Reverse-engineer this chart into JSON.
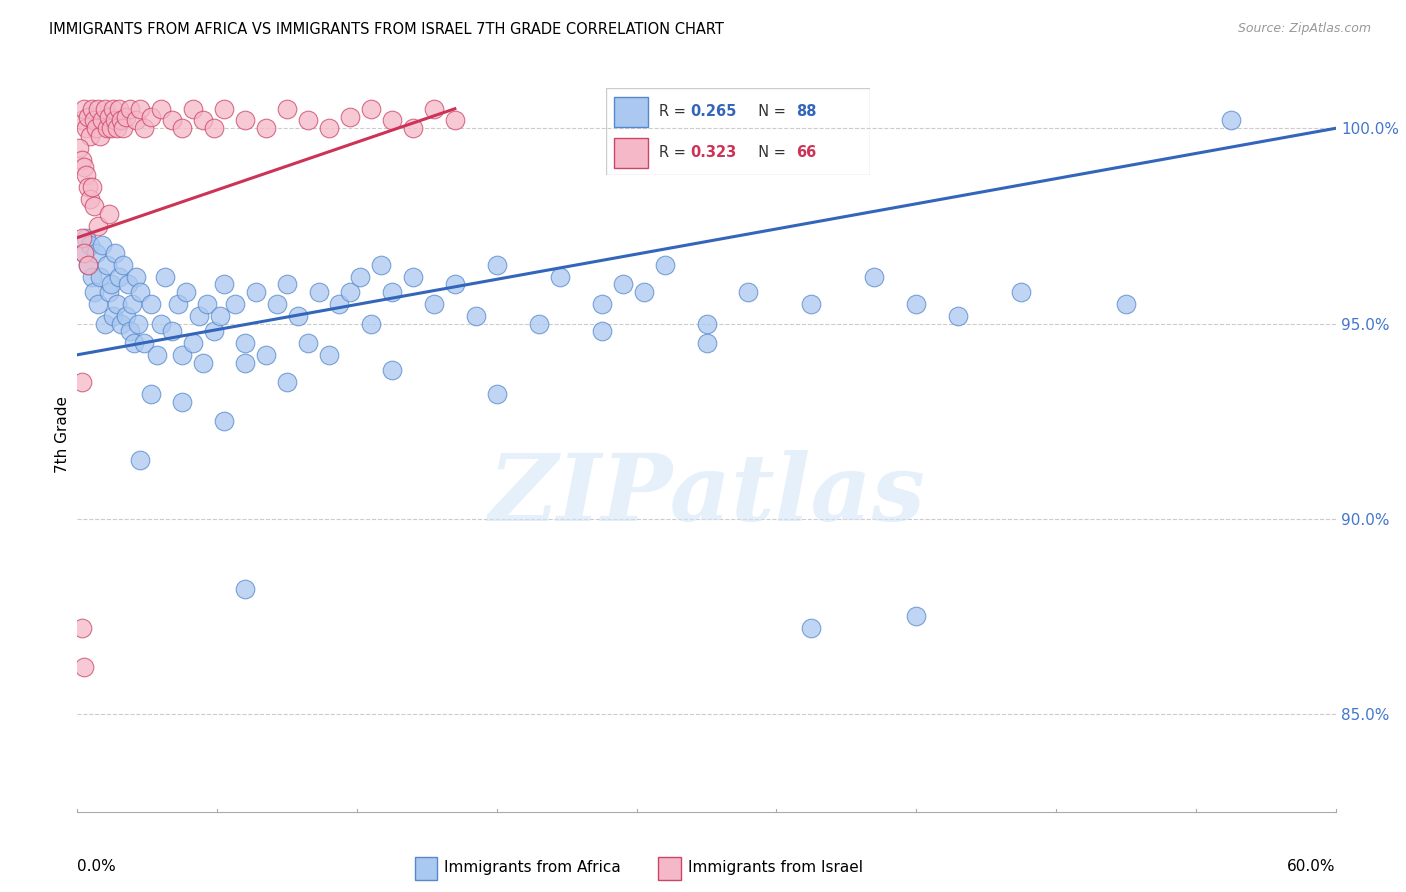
{
  "title": "IMMIGRANTS FROM AFRICA VS IMMIGRANTS FROM ISRAEL 7TH GRADE CORRELATION CHART",
  "source": "Source: ZipAtlas.com",
  "ylabel": "7th Grade",
  "y_ticks": [
    85.0,
    90.0,
    95.0,
    100.0
  ],
  "y_tick_labels": [
    "85.0%",
    "90.0%",
    "95.0%",
    "100.0%"
  ],
  "xlim": [
    0.0,
    60.0
  ],
  "ylim": [
    82.5,
    101.8
  ],
  "legend_blue_R": 0.265,
  "legend_blue_N": 88,
  "legend_pink_R": 0.323,
  "legend_pink_N": 66,
  "blue_color": "#aac8f0",
  "blue_edge": "#5588cc",
  "pink_color": "#f5b8c8",
  "pink_edge": "#cc4466",
  "trend_blue_color": "#3366bb",
  "trend_pink_color": "#cc3355",
  "watermark_text": "ZIPatlas",
  "blue_scatter": [
    [
      0.3,
      96.8
    ],
    [
      0.4,
      97.2
    ],
    [
      0.5,
      96.5
    ],
    [
      0.6,
      97.0
    ],
    [
      0.7,
      96.2
    ],
    [
      0.8,
      95.8
    ],
    [
      0.9,
      96.8
    ],
    [
      1.0,
      95.5
    ],
    [
      1.1,
      96.2
    ],
    [
      1.2,
      97.0
    ],
    [
      1.3,
      95.0
    ],
    [
      1.4,
      96.5
    ],
    [
      1.5,
      95.8
    ],
    [
      1.6,
      96.0
    ],
    [
      1.7,
      95.2
    ],
    [
      1.8,
      96.8
    ],
    [
      1.9,
      95.5
    ],
    [
      2.0,
      96.2
    ],
    [
      2.1,
      95.0
    ],
    [
      2.2,
      96.5
    ],
    [
      2.3,
      95.2
    ],
    [
      2.4,
      96.0
    ],
    [
      2.5,
      94.8
    ],
    [
      2.6,
      95.5
    ],
    [
      2.7,
      94.5
    ],
    [
      2.8,
      96.2
    ],
    [
      2.9,
      95.0
    ],
    [
      3.0,
      95.8
    ],
    [
      3.2,
      94.5
    ],
    [
      3.5,
      95.5
    ],
    [
      3.8,
      94.2
    ],
    [
      4.0,
      95.0
    ],
    [
      4.2,
      96.2
    ],
    [
      4.5,
      94.8
    ],
    [
      4.8,
      95.5
    ],
    [
      5.0,
      94.2
    ],
    [
      5.2,
      95.8
    ],
    [
      5.5,
      94.5
    ],
    [
      5.8,
      95.2
    ],
    [
      6.0,
      94.0
    ],
    [
      6.2,
      95.5
    ],
    [
      6.5,
      94.8
    ],
    [
      6.8,
      95.2
    ],
    [
      7.0,
      96.0
    ],
    [
      7.5,
      95.5
    ],
    [
      8.0,
      94.5
    ],
    [
      8.5,
      95.8
    ],
    [
      9.0,
      94.2
    ],
    [
      9.5,
      95.5
    ],
    [
      10.0,
      96.0
    ],
    [
      10.5,
      95.2
    ],
    [
      11.0,
      94.5
    ],
    [
      11.5,
      95.8
    ],
    [
      12.0,
      94.2
    ],
    [
      12.5,
      95.5
    ],
    [
      13.0,
      95.8
    ],
    [
      13.5,
      96.2
    ],
    [
      14.0,
      95.0
    ],
    [
      14.5,
      96.5
    ],
    [
      15.0,
      95.8
    ],
    [
      16.0,
      96.2
    ],
    [
      17.0,
      95.5
    ],
    [
      18.0,
      96.0
    ],
    [
      19.0,
      95.2
    ],
    [
      20.0,
      96.5
    ],
    [
      22.0,
      95.0
    ],
    [
      23.0,
      96.2
    ],
    [
      25.0,
      95.5
    ],
    [
      26.0,
      96.0
    ],
    [
      27.0,
      95.8
    ],
    [
      28.0,
      96.5
    ],
    [
      30.0,
      95.0
    ],
    [
      32.0,
      95.8
    ],
    [
      35.0,
      95.5
    ],
    [
      38.0,
      96.2
    ],
    [
      40.0,
      95.5
    ],
    [
      42.0,
      95.2
    ],
    [
      45.0,
      95.8
    ],
    [
      50.0,
      95.5
    ],
    [
      55.0,
      100.2
    ],
    [
      3.5,
      93.2
    ],
    [
      5.0,
      93.0
    ],
    [
      7.0,
      92.5
    ],
    [
      8.0,
      94.0
    ],
    [
      10.0,
      93.5
    ],
    [
      15.0,
      93.8
    ],
    [
      20.0,
      93.2
    ],
    [
      25.0,
      94.8
    ],
    [
      30.0,
      94.5
    ],
    [
      3.0,
      91.5
    ],
    [
      8.0,
      88.2
    ],
    [
      35.0,
      87.2
    ],
    [
      40.0,
      87.5
    ]
  ],
  "pink_scatter": [
    [
      0.2,
      100.2
    ],
    [
      0.3,
      100.5
    ],
    [
      0.4,
      100.0
    ],
    [
      0.5,
      100.3
    ],
    [
      0.6,
      99.8
    ],
    [
      0.7,
      100.5
    ],
    [
      0.8,
      100.2
    ],
    [
      0.9,
      100.0
    ],
    [
      1.0,
      100.5
    ],
    [
      1.1,
      99.8
    ],
    [
      1.2,
      100.2
    ],
    [
      1.3,
      100.5
    ],
    [
      1.4,
      100.0
    ],
    [
      1.5,
      100.3
    ],
    [
      1.6,
      100.0
    ],
    [
      1.7,
      100.5
    ],
    [
      1.8,
      100.2
    ],
    [
      1.9,
      100.0
    ],
    [
      2.0,
      100.5
    ],
    [
      2.1,
      100.2
    ],
    [
      2.2,
      100.0
    ],
    [
      2.3,
      100.3
    ],
    [
      2.5,
      100.5
    ],
    [
      2.8,
      100.2
    ],
    [
      3.0,
      100.5
    ],
    [
      3.2,
      100.0
    ],
    [
      3.5,
      100.3
    ],
    [
      4.0,
      100.5
    ],
    [
      4.5,
      100.2
    ],
    [
      5.0,
      100.0
    ],
    [
      5.5,
      100.5
    ],
    [
      6.0,
      100.2
    ],
    [
      6.5,
      100.0
    ],
    [
      7.0,
      100.5
    ],
    [
      8.0,
      100.2
    ],
    [
      9.0,
      100.0
    ],
    [
      10.0,
      100.5
    ],
    [
      11.0,
      100.2
    ],
    [
      12.0,
      100.0
    ],
    [
      13.0,
      100.3
    ],
    [
      14.0,
      100.5
    ],
    [
      15.0,
      100.2
    ],
    [
      16.0,
      100.0
    ],
    [
      17.0,
      100.5
    ],
    [
      18.0,
      100.2
    ],
    [
      0.1,
      99.5
    ],
    [
      0.2,
      99.2
    ],
    [
      0.3,
      99.0
    ],
    [
      0.4,
      98.8
    ],
    [
      0.5,
      98.5
    ],
    [
      0.6,
      98.2
    ],
    [
      0.7,
      98.5
    ],
    [
      0.8,
      98.0
    ],
    [
      1.0,
      97.5
    ],
    [
      1.5,
      97.8
    ],
    [
      0.2,
      97.2
    ],
    [
      0.3,
      96.8
    ],
    [
      0.5,
      96.5
    ],
    [
      0.2,
      93.5
    ],
    [
      0.2,
      87.2
    ],
    [
      0.3,
      86.2
    ]
  ],
  "blue_trend_x": [
    0.0,
    60.0
  ],
  "blue_trend_y": [
    94.2,
    100.0
  ],
  "pink_trend_x": [
    0.0,
    18.0
  ],
  "pink_trend_y": [
    97.2,
    100.5
  ]
}
